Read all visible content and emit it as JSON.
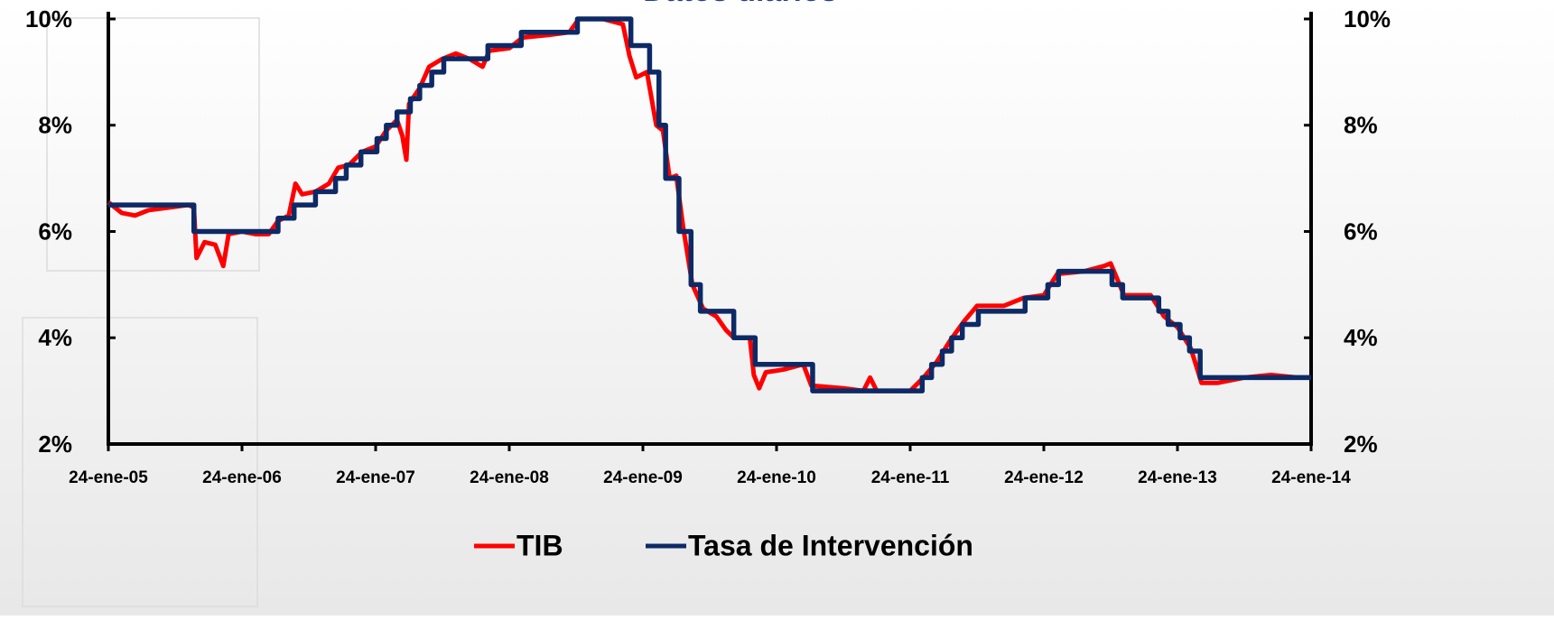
{
  "chart_data": {
    "type": "line",
    "title": "Datos diarios",
    "xlim": [
      2005,
      2014
    ],
    "xticks": [
      {
        "value": 2005,
        "label": "24-ene-05"
      },
      {
        "value": 2006,
        "label": "24-ene-06"
      },
      {
        "value": 2007,
        "label": "24-ene-07"
      },
      {
        "value": 2008,
        "label": "24-ene-08"
      },
      {
        "value": 2009,
        "label": "24-ene-09"
      },
      {
        "value": 2010,
        "label": "24-ene-10"
      },
      {
        "value": 2011,
        "label": "24-ene-11"
      },
      {
        "value": 2012,
        "label": "24-ene-12"
      },
      {
        "value": 2013,
        "label": "24-ene-13"
      },
      {
        "value": 2014,
        "label": "24-ene-14"
      }
    ],
    "ylim": [
      2,
      10
    ],
    "yticks": [
      {
        "value": 2,
        "label": "2%"
      },
      {
        "value": 4,
        "label": "4%"
      },
      {
        "value": 6,
        "label": "6%"
      },
      {
        "value": 8,
        "label": "8%"
      },
      {
        "value": 10,
        "label": "10%"
      }
    ],
    "series": [
      {
        "name": "TIB",
        "color": "#ff0000",
        "step": false,
        "x": [
          2005.0,
          2005.1,
          2005.2,
          2005.3,
          2005.45,
          2005.6,
          2005.64,
          2005.66,
          2005.72,
          2005.8,
          2005.86,
          2005.9,
          2006.0,
          2006.1,
          2006.2,
          2006.27,
          2006.35,
          2006.4,
          2006.45,
          2006.55,
          2006.65,
          2006.72,
          2006.8,
          2006.9,
          2007.0,
          2007.08,
          2007.16,
          2007.2,
          2007.23,
          2007.25,
          2007.33,
          2007.4,
          2007.5,
          2007.6,
          2007.7,
          2007.8,
          2007.85,
          2008.0,
          2008.1,
          2008.3,
          2008.45,
          2008.52,
          2008.7,
          2008.85,
          2008.9,
          2008.95,
          2009.03,
          2009.1,
          2009.15,
          2009.2,
          2009.25,
          2009.3,
          2009.37,
          2009.45,
          2009.55,
          2009.62,
          2009.68,
          2009.8,
          2009.83,
          2009.87,
          2009.92,
          2010.05,
          2010.2,
          2010.26,
          2010.5,
          2010.65,
          2010.7,
          2010.75,
          2010.9,
          2011.0,
          2011.1,
          2011.2,
          2011.3,
          2011.4,
          2011.5,
          2011.7,
          2011.85,
          2012.0,
          2012.1,
          2012.3,
          2012.45,
          2012.5,
          2012.55,
          2012.6,
          2012.8,
          2012.9,
          2013.0,
          2013.1,
          2013.18,
          2013.3,
          2013.5,
          2013.7,
          2013.9,
          2014.0
        ],
        "values": [
          6.55,
          6.35,
          6.3,
          6.4,
          6.45,
          6.5,
          6.45,
          5.5,
          5.8,
          5.75,
          5.35,
          5.95,
          6.0,
          5.95,
          5.95,
          6.2,
          6.3,
          6.9,
          6.7,
          6.75,
          6.9,
          7.2,
          7.25,
          7.5,
          7.6,
          7.9,
          8.1,
          7.8,
          7.35,
          8.4,
          8.7,
          9.1,
          9.25,
          9.35,
          9.25,
          9.1,
          9.4,
          9.45,
          9.65,
          9.7,
          9.75,
          10.0,
          10.0,
          9.9,
          9.3,
          8.9,
          9.0,
          8.0,
          7.9,
          7.0,
          7.05,
          6.1,
          5.0,
          4.55,
          4.4,
          4.15,
          4.0,
          4.0,
          3.3,
          3.05,
          3.35,
          3.4,
          3.5,
          3.1,
          3.05,
          3.0,
          3.25,
          3.0,
          3.0,
          3.0,
          3.25,
          3.55,
          3.95,
          4.3,
          4.6,
          4.6,
          4.75,
          4.8,
          5.2,
          5.25,
          5.35,
          5.4,
          5.1,
          4.8,
          4.8,
          4.4,
          4.2,
          3.8,
          3.15,
          3.15,
          3.25,
          3.3,
          3.25,
          3.25
        ]
      },
      {
        "name": "Tasa de Intervención",
        "color": "#0d2a66",
        "step": true,
        "x": [
          2005.0,
          2005.64,
          2006.27,
          2006.39,
          2006.55,
          2006.7,
          2006.78,
          2006.89,
          2007.01,
          2007.08,
          2007.16,
          2007.26,
          2007.33,
          2007.42,
          2007.51,
          2007.84,
          2008.09,
          2008.51,
          2008.91,
          2009.05,
          2009.12,
          2009.17,
          2009.27,
          2009.36,
          2009.43,
          2009.68,
          2009.84,
          2010.27,
          2011.09,
          2011.16,
          2011.24,
          2011.31,
          2011.39,
          2011.51,
          2011.86,
          2012.03,
          2012.11,
          2012.51,
          2012.59,
          2012.86,
          2012.93,
          2013.02,
          2013.09,
          2013.17,
          2014.0
        ],
        "values": [
          6.5,
          6.0,
          6.25,
          6.5,
          6.75,
          7.0,
          7.25,
          7.5,
          7.75,
          8.0,
          8.25,
          8.5,
          8.75,
          9.0,
          9.25,
          9.5,
          9.75,
          10.0,
          9.5,
          9.0,
          8.0,
          7.0,
          6.0,
          5.0,
          4.5,
          4.0,
          3.5,
          3.0,
          3.25,
          3.5,
          3.75,
          4.0,
          4.25,
          4.5,
          4.75,
          5.0,
          5.25,
          5.0,
          4.75,
          4.5,
          4.25,
          4.0,
          3.75,
          3.25,
          3.25
        ]
      }
    ]
  }
}
